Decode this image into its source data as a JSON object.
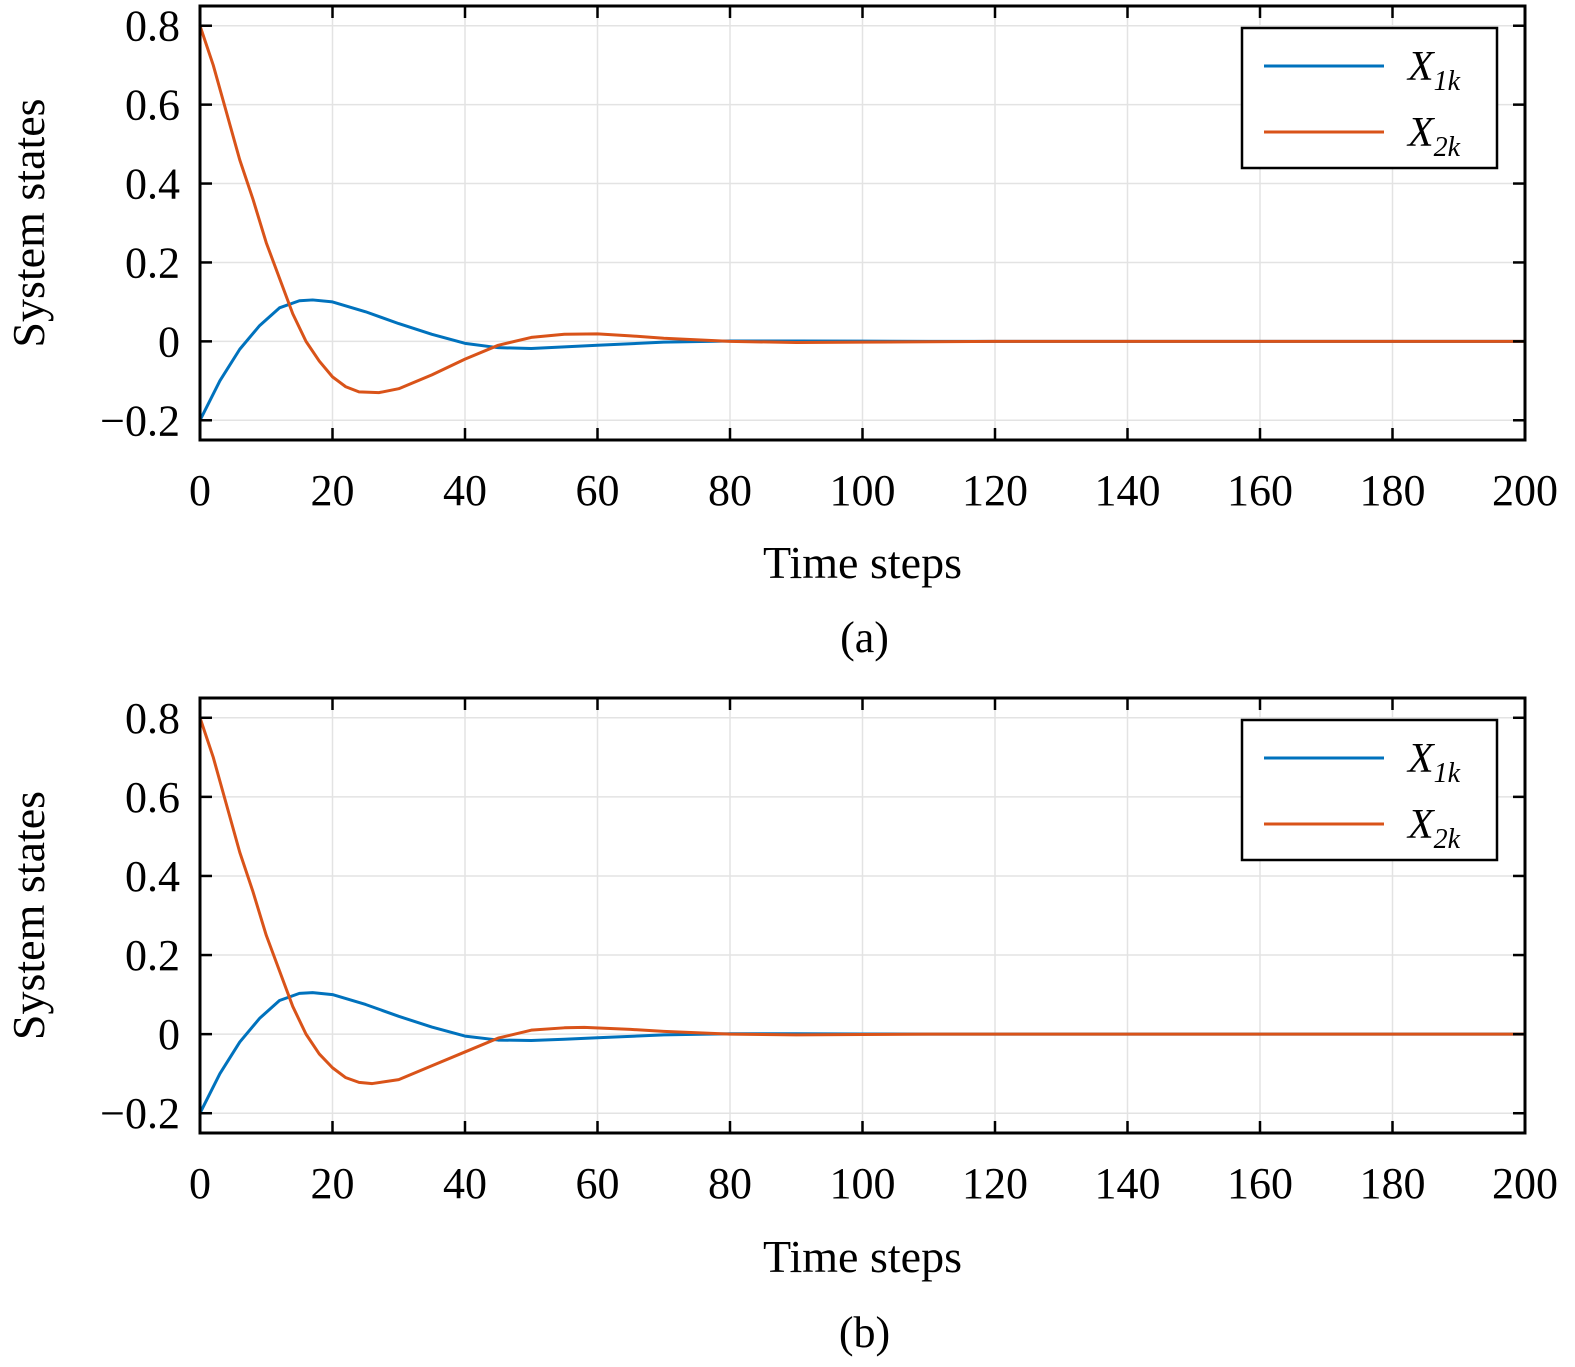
{
  "chart_data": [
    {
      "type": "line",
      "caption": "(a)",
      "xlabel": "Time steps",
      "ylabel": "System states",
      "xlim": [
        0,
        200
      ],
      "ylim": [
        -0.25,
        0.85
      ],
      "xticks": [
        0,
        20,
        40,
        60,
        80,
        100,
        120,
        140,
        160,
        180,
        200
      ],
      "xtick_labels": [
        "0",
        "20",
        "40",
        "60",
        "80",
        "100",
        "120",
        "140",
        "160",
        "180",
        "200"
      ],
      "yticks": [
        -0.2,
        0,
        0.2,
        0.4,
        0.6,
        0.8
      ],
      "ytick_labels": [
        "−0.2",
        "0",
        "0.2",
        "0.4",
        "0.6",
        "0.8"
      ],
      "grid": true,
      "legend_position": "top-right",
      "series": [
        {
          "name": "X1k",
          "name_main": "X",
          "name_sub": "1k",
          "color": "#0072BD",
          "x": [
            0,
            3,
            6,
            9,
            12,
            15,
            17,
            20,
            25,
            30,
            35,
            40,
            45,
            50,
            55,
            60,
            70,
            80,
            90,
            100,
            110,
            120,
            140,
            160,
            180,
            200
          ],
          "y": [
            -0.2,
            -0.1,
            -0.02,
            0.04,
            0.085,
            0.103,
            0.105,
            0.1,
            0.075,
            0.045,
            0.018,
            -0.005,
            -0.016,
            -0.018,
            -0.014,
            -0.01,
            -0.002,
            0.001,
            0.001,
            0.0005,
            0,
            0,
            0,
            0,
            0,
            0
          ]
        },
        {
          "name": "X2k",
          "name_main": "X",
          "name_sub": "2k",
          "color": "#D95319",
          "x": [
            0,
            2,
            4,
            6,
            8,
            10,
            12,
            14,
            16,
            18,
            20,
            22,
            24,
            27,
            30,
            35,
            40,
            45,
            50,
            55,
            60,
            65,
            70,
            80,
            90,
            100,
            110,
            120,
            140,
            160,
            180,
            200
          ],
          "y": [
            0.8,
            0.7,
            0.58,
            0.46,
            0.36,
            0.25,
            0.16,
            0.07,
            0.0,
            -0.05,
            -0.09,
            -0.115,
            -0.128,
            -0.13,
            -0.12,
            -0.085,
            -0.045,
            -0.01,
            0.01,
            0.018,
            0.019,
            0.014,
            0.008,
            0.0,
            -0.003,
            -0.002,
            -0.001,
            0,
            0,
            0,
            0,
            0
          ]
        }
      ]
    },
    {
      "type": "line",
      "caption": "(b)",
      "xlabel": "Time steps",
      "ylabel": "System states",
      "xlim": [
        0,
        200
      ],
      "ylim": [
        -0.25,
        0.85
      ],
      "xticks": [
        0,
        20,
        40,
        60,
        80,
        100,
        120,
        140,
        160,
        180,
        200
      ],
      "xtick_labels": [
        "0",
        "20",
        "40",
        "60",
        "80",
        "100",
        "120",
        "140",
        "160",
        "180",
        "200"
      ],
      "yticks": [
        -0.2,
        0,
        0.2,
        0.4,
        0.6,
        0.8
      ],
      "ytick_labels": [
        "−0.2",
        "0",
        "0.2",
        "0.4",
        "0.6",
        "0.8"
      ],
      "grid": true,
      "legend_position": "top-right",
      "series": [
        {
          "name": "X1k",
          "name_main": "X",
          "name_sub": "1k",
          "color": "#0072BD",
          "x": [
            0,
            3,
            6,
            9,
            12,
            15,
            17,
            20,
            25,
            30,
            35,
            40,
            45,
            50,
            55,
            60,
            70,
            80,
            90,
            100,
            110,
            120,
            140,
            160,
            180,
            200
          ],
          "y": [
            -0.2,
            -0.1,
            -0.02,
            0.04,
            0.085,
            0.103,
            0.105,
            0.1,
            0.075,
            0.045,
            0.018,
            -0.005,
            -0.015,
            -0.016,
            -0.013,
            -0.009,
            -0.002,
            0.001,
            0.001,
            0.0005,
            0,
            0,
            0,
            0,
            0,
            0
          ]
        },
        {
          "name": "X2k",
          "name_main": "X",
          "name_sub": "2k",
          "color": "#D95319",
          "x": [
            0,
            2,
            4,
            6,
            8,
            10,
            12,
            14,
            16,
            18,
            20,
            22,
            24,
            26,
            30,
            35,
            40,
            45,
            50,
            55,
            58,
            65,
            70,
            80,
            90,
            100,
            110,
            120,
            140,
            160,
            180,
            200
          ],
          "y": [
            0.8,
            0.7,
            0.58,
            0.46,
            0.36,
            0.25,
            0.16,
            0.07,
            0.0,
            -0.05,
            -0.085,
            -0.11,
            -0.122,
            -0.125,
            -0.115,
            -0.08,
            -0.045,
            -0.01,
            0.01,
            0.016,
            0.017,
            0.012,
            0.007,
            0.0,
            -0.002,
            -0.001,
            0,
            0,
            0,
            0,
            0,
            0
          ]
        }
      ]
    }
  ]
}
